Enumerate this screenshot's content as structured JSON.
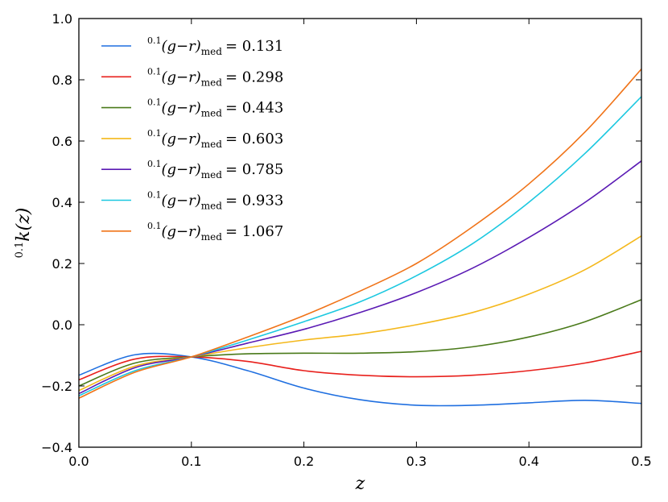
{
  "chart_data": {
    "type": "line",
    "title": "",
    "xlabel": "z",
    "ylabel_sup": "0.1",
    "ylabel_main": "k(z)",
    "xlim": [
      0.0,
      0.5
    ],
    "ylim": [
      -0.4,
      1.0
    ],
    "xticks": [
      0.0,
      0.1,
      0.2,
      0.3,
      0.4,
      0.5
    ],
    "yticks": [
      -0.4,
      -0.2,
      0.0,
      0.2,
      0.4,
      0.6,
      0.8,
      1.0
    ],
    "xtick_labels": [
      "0.0",
      "0.1",
      "0.2",
      "0.3",
      "0.4",
      "0.5"
    ],
    "ytick_labels": [
      "−0.4",
      "−0.2",
      "0.0",
      "0.2",
      "0.4",
      "0.6",
      "0.8",
      "1.0"
    ],
    "legend_position": "top-left",
    "x": [
      0.0,
      0.05,
      0.1,
      0.15,
      0.2,
      0.25,
      0.3,
      0.35,
      0.4,
      0.45,
      0.5
    ],
    "series": [
      {
        "name": "0.1(g−r)med = 0.131",
        "sup": "0.1",
        "base": "(g−r)",
        "sub": "med",
        "value": "= 0.131",
        "color": "#1f6fe0",
        "values": [
          -0.165,
          -0.098,
          -0.105,
          -0.15,
          -0.207,
          -0.245,
          -0.263,
          -0.263,
          -0.255,
          -0.247,
          -0.257
        ]
      },
      {
        "name": "0.1(g−r)med = 0.298",
        "sup": "0.1",
        "base": "(g−r)",
        "sub": "med",
        "value": "= 0.298",
        "color": "#e8201c",
        "values": [
          -0.18,
          -0.112,
          -0.105,
          -0.12,
          -0.15,
          -0.165,
          -0.17,
          -0.165,
          -0.15,
          -0.125,
          -0.087
        ]
      },
      {
        "name": "0.1(g−r)med = 0.443",
        "sup": "0.1",
        "base": "(g−r)",
        "sub": "med",
        "value": "= 0.443",
        "color": "#4a7a1a",
        "values": [
          -0.2,
          -0.125,
          -0.105,
          -0.095,
          -0.093,
          -0.093,
          -0.088,
          -0.072,
          -0.04,
          0.01,
          0.082
        ]
      },
      {
        "name": "0.1(g−r)med = 0.603",
        "sup": "0.1",
        "base": "(g−r)",
        "sub": "med",
        "value": "= 0.603",
        "color": "#f4b81c",
        "values": [
          -0.215,
          -0.135,
          -0.105,
          -0.075,
          -0.05,
          -0.03,
          0.0,
          0.04,
          0.1,
          0.18,
          0.29
        ]
      },
      {
        "name": "0.1(g−r)med = 0.785",
        "sup": "0.1",
        "base": "(g−r)",
        "sub": "med",
        "value": "= 0.785",
        "color": "#5a1ab4",
        "values": [
          -0.225,
          -0.14,
          -0.105,
          -0.06,
          -0.015,
          0.04,
          0.105,
          0.185,
          0.285,
          0.4,
          0.535
        ]
      },
      {
        "name": "0.1(g−r)med = 0.933",
        "sup": "0.1",
        "base": "(g−r)",
        "sub": "med",
        "value": "= 0.933",
        "color": "#1cc8e0",
        "values": [
          -0.232,
          -0.15,
          -0.105,
          -0.05,
          0.01,
          0.075,
          0.16,
          0.265,
          0.4,
          0.56,
          0.745
        ]
      },
      {
        "name": "0.1(g−r)med = 1.067",
        "sup": "0.1",
        "base": "(g−r)",
        "sub": "med",
        "value": "= 1.067",
        "color": "#f07318",
        "values": [
          -0.24,
          -0.155,
          -0.105,
          -0.04,
          0.03,
          0.11,
          0.2,
          0.32,
          0.46,
          0.63,
          0.835
        ]
      }
    ]
  }
}
